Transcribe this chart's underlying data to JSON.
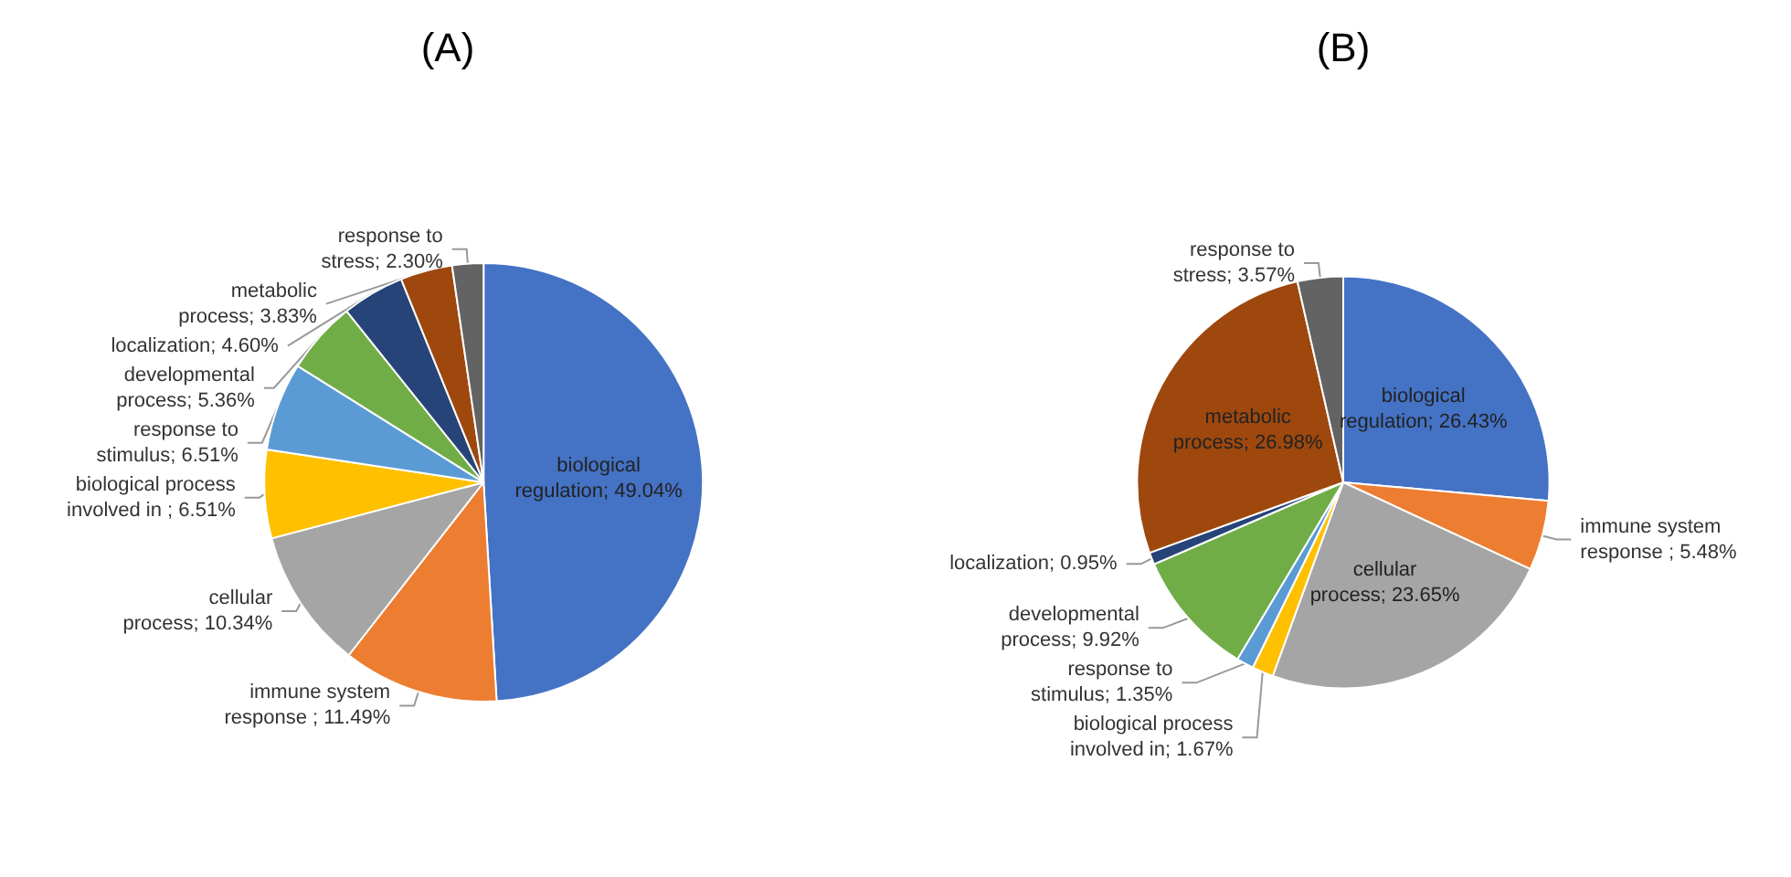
{
  "chart_data": [
    {
      "type": "pie",
      "title": "(A)",
      "categories": [
        "biological regulation",
        "immune system response ",
        "cellular process",
        "biological process involved in ",
        "response to stimulus",
        "developmental process",
        "localization",
        "metabolic process",
        "response to stress"
      ],
      "values": [
        49.04,
        11.49,
        10.34,
        6.51,
        6.51,
        5.36,
        4.6,
        3.83,
        2.3
      ],
      "value_labels": [
        "49.04%",
        "11.49%",
        "10.34%",
        "6.51%",
        "6.51%",
        "5.36%",
        "4.60%",
        "3.83%",
        "2.30%"
      ],
      "colors": [
        "#4472c4",
        "#ed7d31",
        "#a5a5a5",
        "#ffc000",
        "#5b9bd5",
        "#70ad47",
        "#264478",
        "#9e480e",
        "#636363"
      ]
    },
    {
      "type": "pie",
      "title": "(B)",
      "categories": [
        "biological regulation",
        "immune system response ",
        "cellular process",
        "biological process involved in",
        "response to stimulus",
        "developmental process",
        "localization",
        "metabolic process",
        "response to stress"
      ],
      "values": [
        26.43,
        5.48,
        23.65,
        1.67,
        1.35,
        9.92,
        0.95,
        26.98,
        3.57
      ],
      "value_labels": [
        "26.43%",
        "5.48%",
        "23.65%",
        "1.67%",
        "1.35%",
        "9.92%",
        "0.95%",
        "26.98%",
        "3.57%"
      ],
      "colors": [
        "#4472c4",
        "#ed7d31",
        "#a5a5a5",
        "#ffc000",
        "#5b9bd5",
        "#70ad47",
        "#264478",
        "#9e480e",
        "#636363"
      ]
    }
  ]
}
